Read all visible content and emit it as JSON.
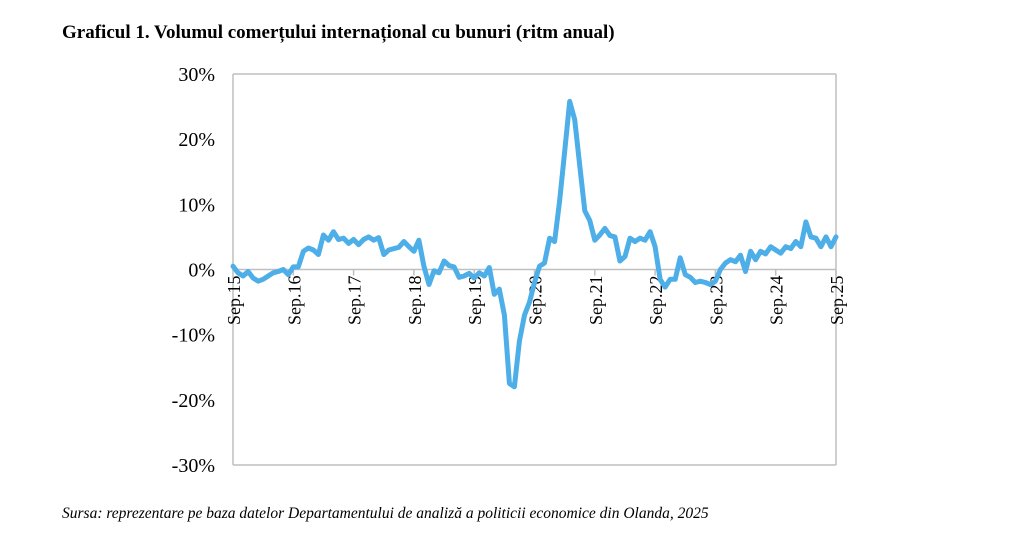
{
  "title": "Graficul 1. Volumul comerțului internațional cu bunuri (ritm anual)",
  "source": "Sursa: reprezentare pe baza datelor Departamentului de analiză a politicii economice din Olanda, 2025",
  "colors": {
    "line": "#4DAEE8",
    "axis": "#BFBFBF"
  },
  "chart_data": {
    "type": "line",
    "title": "Graficul 1. Volumul comerțului internațional cu bunuri (ritm anual)",
    "xlabel": "",
    "ylabel": "",
    "ylim": [
      -30,
      30
    ],
    "y_ticks": [
      "30%",
      "20%",
      "10%",
      "0%",
      "-10%",
      "-20%",
      "-30%"
    ],
    "x_ticks": [
      "Sep.15",
      "Sep.16",
      "Sep.17",
      "Sep.18",
      "Sep.19",
      "Sep.20",
      "Sep.21",
      "Sep.22",
      "Sep.23",
      "Sep.24",
      "Sep.25"
    ],
    "grid": false,
    "legend": "none",
    "frequency": "monthly, Sep 2015 - Sep 2025",
    "series": [
      {
        "name": "Volumul comerțului internațional cu bunuri (ritm anual, %)",
        "values": [
          0.5,
          -0.5,
          -1.0,
          -0.3,
          -1.3,
          -1.8,
          -1.5,
          -1.0,
          -0.5,
          -0.3,
          0.0,
          -0.8,
          0.4,
          0.4,
          2.8,
          3.3,
          3.0,
          2.3,
          5.3,
          4.5,
          5.8,
          4.6,
          4.8,
          4.0,
          4.6,
          3.8,
          4.6,
          5.0,
          4.5,
          4.9,
          2.3,
          3.0,
          3.2,
          3.4,
          4.3,
          3.5,
          2.8,
          4.5,
          0.5,
          -2.3,
          -0.2,
          -0.5,
          1.3,
          0.6,
          0.4,
          -1.2,
          -1.0,
          -0.6,
          -1.3,
          -0.5,
          -1.0,
          0.3,
          -3.8,
          -3.0,
          -7.0,
          -17.5,
          -18.0,
          -11.0,
          -7.0,
          -5.0,
          -2.0,
          0.5,
          1.0,
          4.8,
          4.3,
          10.5,
          18.0,
          25.8,
          23.0,
          16.0,
          9.0,
          7.5,
          4.5,
          5.3,
          6.3,
          5.2,
          5.0,
          1.3,
          2.0,
          4.8,
          4.3,
          4.8,
          4.5,
          5.8,
          3.5,
          -1.5,
          -2.7,
          -1.5,
          -1.5,
          1.8,
          -0.8,
          -1.2,
          -2.0,
          -1.8,
          -2.0,
          -2.3,
          -1.8,
          0.0,
          1.0,
          1.5,
          1.2,
          2.2,
          -0.3,
          2.8,
          1.5,
          2.8,
          2.4,
          3.5,
          3.0,
          2.5,
          3.5,
          3.2,
          4.3,
          3.5,
          7.3,
          5.0,
          4.8,
          3.5,
          5.0,
          3.5,
          5.0
        ]
      }
    ]
  }
}
